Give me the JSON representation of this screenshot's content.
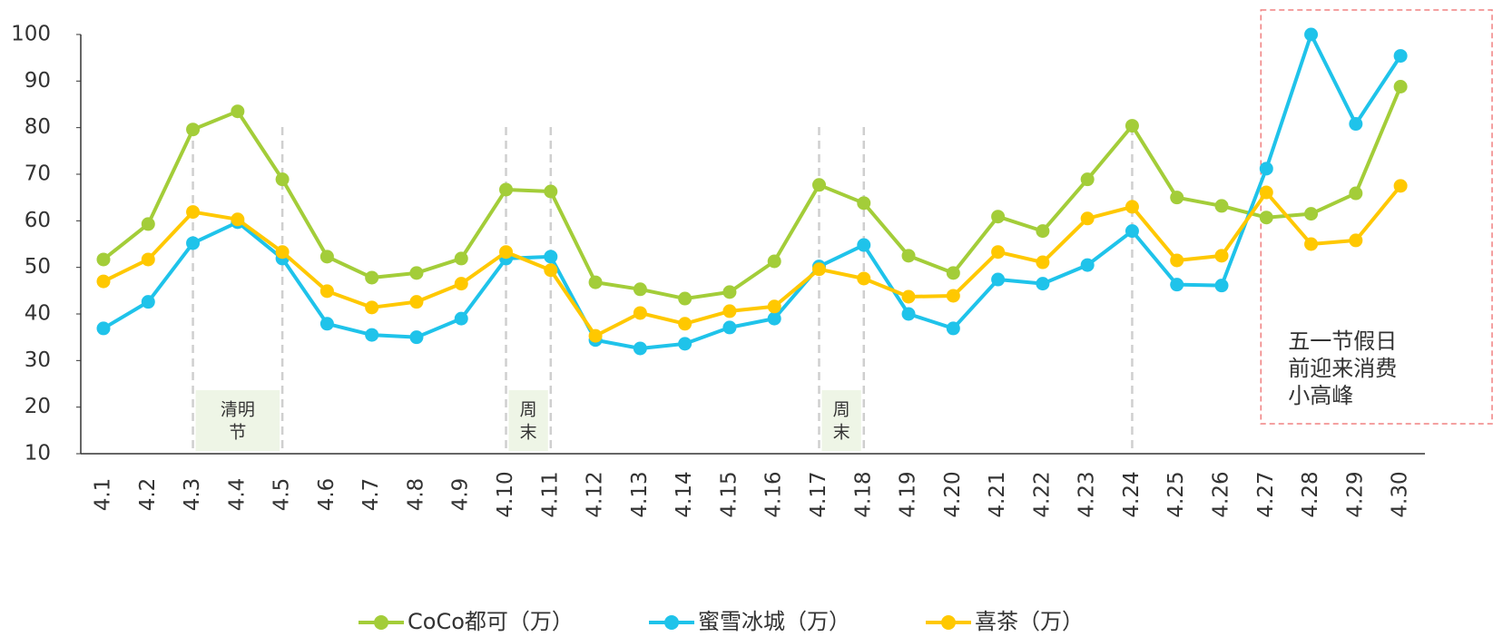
{
  "chart_data": {
    "type": "line",
    "categories": [
      "4.1",
      "4.2",
      "4.3",
      "4.4",
      "4.5",
      "4.6",
      "4.7",
      "4.8",
      "4.9",
      "4.10",
      "4.11",
      "4.12",
      "4.13",
      "4.14",
      "4.15",
      "4.16",
      "4.17",
      "4.18",
      "4.19",
      "4.20",
      "4.21",
      "4.22",
      "4.23",
      "4.24",
      "4.25",
      "4.26",
      "4.27",
      "4.28",
      "4.29",
      "4.30"
    ],
    "series": [
      {
        "name": "CoCo都可（万）",
        "color": "#a3cd39",
        "values": [
          51.7,
          59.3,
          79.6,
          83.5,
          68.9,
          52.3,
          47.8,
          48.8,
          51.9,
          66.7,
          66.3,
          46.8,
          45.3,
          43.3,
          44.7,
          51.3,
          67.7,
          63.8,
          52.5,
          48.8,
          60.9,
          57.8,
          68.9,
          80.4,
          65.0,
          63.2,
          60.7,
          61.5,
          65.9,
          88.8
        ]
      },
      {
        "name": "蜜雪冰城（万）",
        "color": "#1fc3ea",
        "values": [
          36.9,
          42.6,
          55.2,
          59.7,
          51.9,
          37.9,
          35.5,
          35.0,
          39.0,
          51.9,
          52.3,
          34.4,
          32.6,
          33.6,
          37.1,
          39.0,
          50.2,
          54.8,
          40.0,
          36.9,
          47.4,
          46.5,
          50.5,
          57.8,
          46.3,
          46.1,
          71.2,
          100,
          80.8,
          95.4
        ]
      },
      {
        "name": "喜茶（万）",
        "color": "#ffc800",
        "values": [
          47.0,
          51.7,
          61.9,
          60.3,
          53.3,
          44.9,
          41.4,
          42.6,
          46.5,
          53.3,
          49.4,
          35.3,
          40.2,
          37.9,
          40.6,
          41.6,
          49.6,
          47.6,
          43.7,
          43.9,
          53.3,
          51.1,
          60.5,
          63.0,
          51.5,
          52.5,
          66.1,
          55.0,
          55.8,
          67.5
        ]
      }
    ],
    "ylim": [
      10,
      100
    ],
    "yticks": [
      10,
      20,
      30,
      40,
      50,
      60,
      70,
      80,
      90,
      100
    ],
    "annotations": [
      {
        "lines": [
          "清明",
          "节"
        ],
        "from": "4.3",
        "to": "4.5"
      },
      {
        "lines": [
          "周",
          "末"
        ],
        "from": "4.10",
        "to": "4.11"
      },
      {
        "lines": [
          "周",
          "末"
        ],
        "from": "4.17",
        "to": "4.18"
      }
    ],
    "vlines": [
      "4.3",
      "4.5",
      "4.10",
      "4.11",
      "4.17",
      "4.18",
      "4.24"
    ],
    "highlight": {
      "lines": [
        "五一节假日",
        "前迎来消费",
        "小高峰"
      ],
      "from": "4.27",
      "to": "4.30"
    }
  }
}
